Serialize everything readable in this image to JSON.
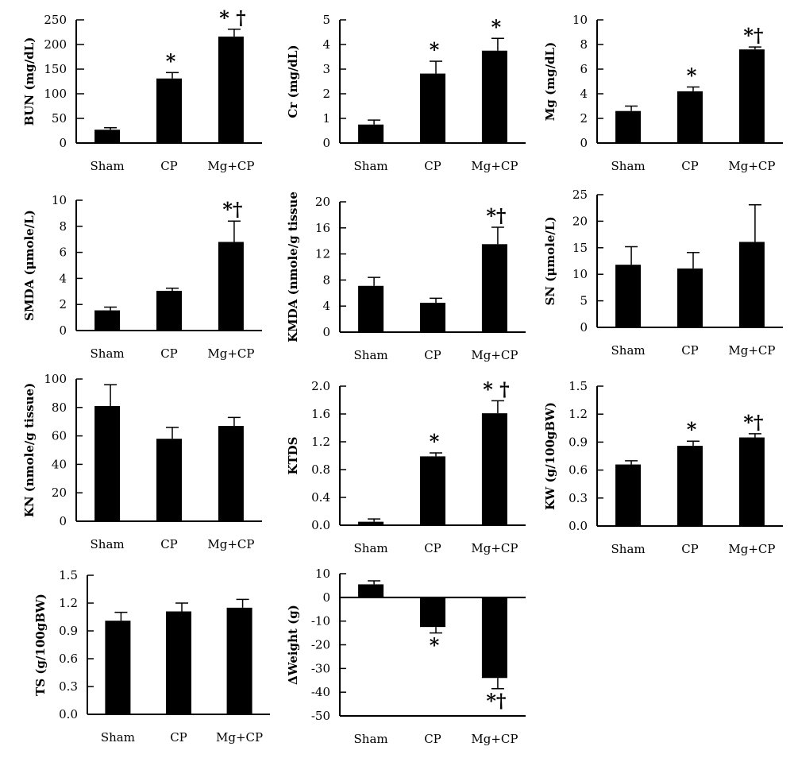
{
  "chart_data": [
    {
      "type": "bar",
      "title": "",
      "categories": [
        "Sham",
        "CP",
        "Mg+CP"
      ],
      "values": [
        27,
        131,
        216
      ],
      "errors": [
        4,
        12,
        15
      ],
      "ylabel": "BUN (mg/dL)",
      "ylim": [
        0,
        250
      ],
      "yticks": [
        0,
        50,
        100,
        150,
        200,
        250
      ],
      "ytick_labels": [
        "0",
        "50",
        "100",
        "150",
        "200",
        "250"
      ],
      "annotations": [
        "",
        "*",
        "* †"
      ]
    },
    {
      "type": "bar",
      "title": "",
      "categories": [
        "Sham",
        "CP",
        "Mg+CP"
      ],
      "values": [
        0.75,
        2.82,
        3.75
      ],
      "errors": [
        0.18,
        0.5,
        0.5
      ],
      "ylabel": "Cr (mg/dL)",
      "ylim": [
        0,
        5
      ],
      "yticks": [
        0,
        1,
        2,
        3,
        4,
        5
      ],
      "ytick_labels": [
        "0",
        "1",
        "2",
        "3",
        "4",
        "5"
      ],
      "annotations": [
        "",
        "*",
        "*"
      ]
    },
    {
      "type": "bar",
      "title": "",
      "categories": [
        "Sham",
        "CP",
        "Mg+CP"
      ],
      "values": [
        2.6,
        4.2,
        7.6
      ],
      "errors": [
        0.4,
        0.35,
        0.2
      ],
      "ylabel": "Mg (mg/dL)",
      "ylim": [
        0,
        10
      ],
      "yticks": [
        0,
        2,
        4,
        6,
        8,
        10
      ],
      "ytick_labels": [
        "0",
        "2",
        "4",
        "6",
        "8",
        "10"
      ],
      "annotations": [
        "",
        "*",
        "*†"
      ]
    },
    {
      "type": "bar",
      "title": "",
      "categories": [
        "Sham",
        "CP",
        "Mg+CP"
      ],
      "values": [
        1.55,
        3.05,
        6.8
      ],
      "errors": [
        0.25,
        0.2,
        1.6
      ],
      "ylabel": "SMDA (μmole/L)",
      "ylim": [
        0,
        10
      ],
      "yticks": [
        0,
        2,
        4,
        6,
        8,
        10
      ],
      "ytick_labels": [
        "0",
        "2",
        "4",
        "6",
        "8",
        "10"
      ],
      "annotations": [
        "",
        "",
        "*†"
      ]
    },
    {
      "type": "bar",
      "title": "",
      "categories": [
        "Sham",
        "CP",
        "Mg+CP"
      ],
      "values": [
        7.1,
        4.5,
        13.5
      ],
      "errors": [
        1.3,
        0.7,
        2.6
      ],
      "ylabel": "KMDA (nmole/g tissue",
      "ylim": [
        0,
        20
      ],
      "yticks": [
        0,
        4,
        8,
        12,
        16,
        20
      ],
      "ytick_labels": [
        "0",
        "4",
        "8",
        "12",
        "16",
        "20"
      ],
      "annotations": [
        "",
        "",
        "*†"
      ]
    },
    {
      "type": "bar",
      "title": "",
      "categories": [
        "Sham",
        "CP",
        "Mg+CP"
      ],
      "values": [
        11.8,
        11.1,
        16.1
      ],
      "errors": [
        3.4,
        3.0,
        7.0
      ],
      "ylabel": "SN (μmole/L)",
      "ylim": [
        0,
        25
      ],
      "yticks": [
        0,
        5,
        10,
        15,
        20,
        25
      ],
      "ytick_labels": [
        "0",
        "5",
        "10",
        "15",
        "20",
        "25"
      ],
      "annotations": [
        "",
        "",
        ""
      ]
    },
    {
      "type": "bar",
      "title": "",
      "categories": [
        "Sham",
        "CP",
        "Mg+CP"
      ],
      "values": [
        81,
        58,
        67
      ],
      "errors": [
        15,
        8,
        6
      ],
      "ylabel": "KN (nmole/g tissue)",
      "ylim": [
        0,
        100
      ],
      "yticks": [
        0,
        20,
        40,
        60,
        80,
        100
      ],
      "ytick_labels": [
        "0",
        "20",
        "40",
        "60",
        "80",
        "100"
      ],
      "annotations": [
        "",
        "",
        ""
      ]
    },
    {
      "type": "bar",
      "title": "",
      "categories": [
        "Sham",
        "CP",
        "Mg+CP"
      ],
      "values": [
        0.05,
        0.99,
        1.61
      ],
      "errors": [
        0.04,
        0.05,
        0.18
      ],
      "ylabel": "KTDS",
      "ylim": [
        0,
        2.0
      ],
      "yticks": [
        0,
        0.4,
        0.8,
        1.2,
        1.6,
        2.0
      ],
      "ytick_labels": [
        "0.0",
        "0.4",
        "0.8",
        "1.2",
        "1.6",
        "2.0"
      ],
      "annotations": [
        "",
        "*",
        "* †"
      ]
    },
    {
      "type": "bar",
      "title": "",
      "categories": [
        "Sham",
        "CP",
        "Mg+CP"
      ],
      "values": [
        0.66,
        0.86,
        0.95
      ],
      "errors": [
        0.04,
        0.05,
        0.04
      ],
      "ylabel": "KW (g/100gBW)",
      "ylim": [
        0,
        1.5
      ],
      "yticks": [
        0,
        0.3,
        0.6,
        0.9,
        1.2,
        1.5
      ],
      "ytick_labels": [
        "0.0",
        "0.3",
        "0.6",
        "0.9",
        "1.2",
        "1.5"
      ],
      "annotations": [
        "",
        "*",
        "*†"
      ]
    },
    {
      "type": "bar",
      "title": "",
      "categories": [
        "Sham",
        "CP",
        "Mg+CP"
      ],
      "values": [
        1.01,
        1.11,
        1.15
      ],
      "errors": [
        0.09,
        0.09,
        0.09
      ],
      "ylabel": "TS (g/100gBW)",
      "ylim": [
        0,
        1.5
      ],
      "yticks": [
        0,
        0.3,
        0.6,
        0.9,
        1.2,
        1.5
      ],
      "ytick_labels": [
        "0.0",
        "0.3",
        "0.6",
        "0.9",
        "1.2",
        "1.5"
      ],
      "annotations": [
        "",
        "",
        ""
      ]
    },
    {
      "type": "bar",
      "title": "",
      "categories": [
        "Sham",
        "CP",
        "Mg+CP"
      ],
      "values": [
        5.5,
        -12.5,
        -34
      ],
      "errors": [
        1.5,
        2.5,
        4.5
      ],
      "ylabel": "ΔWeight (g)",
      "ylim": [
        -50,
        10
      ],
      "yticks": [
        -50,
        -40,
        -30,
        -20,
        -10,
        0,
        10
      ],
      "ytick_labels": [
        "-50",
        "-40",
        "-30",
        "-20",
        "-10",
        "0",
        "10"
      ],
      "annotations": [
        "",
        "*",
        "*†"
      ]
    }
  ]
}
